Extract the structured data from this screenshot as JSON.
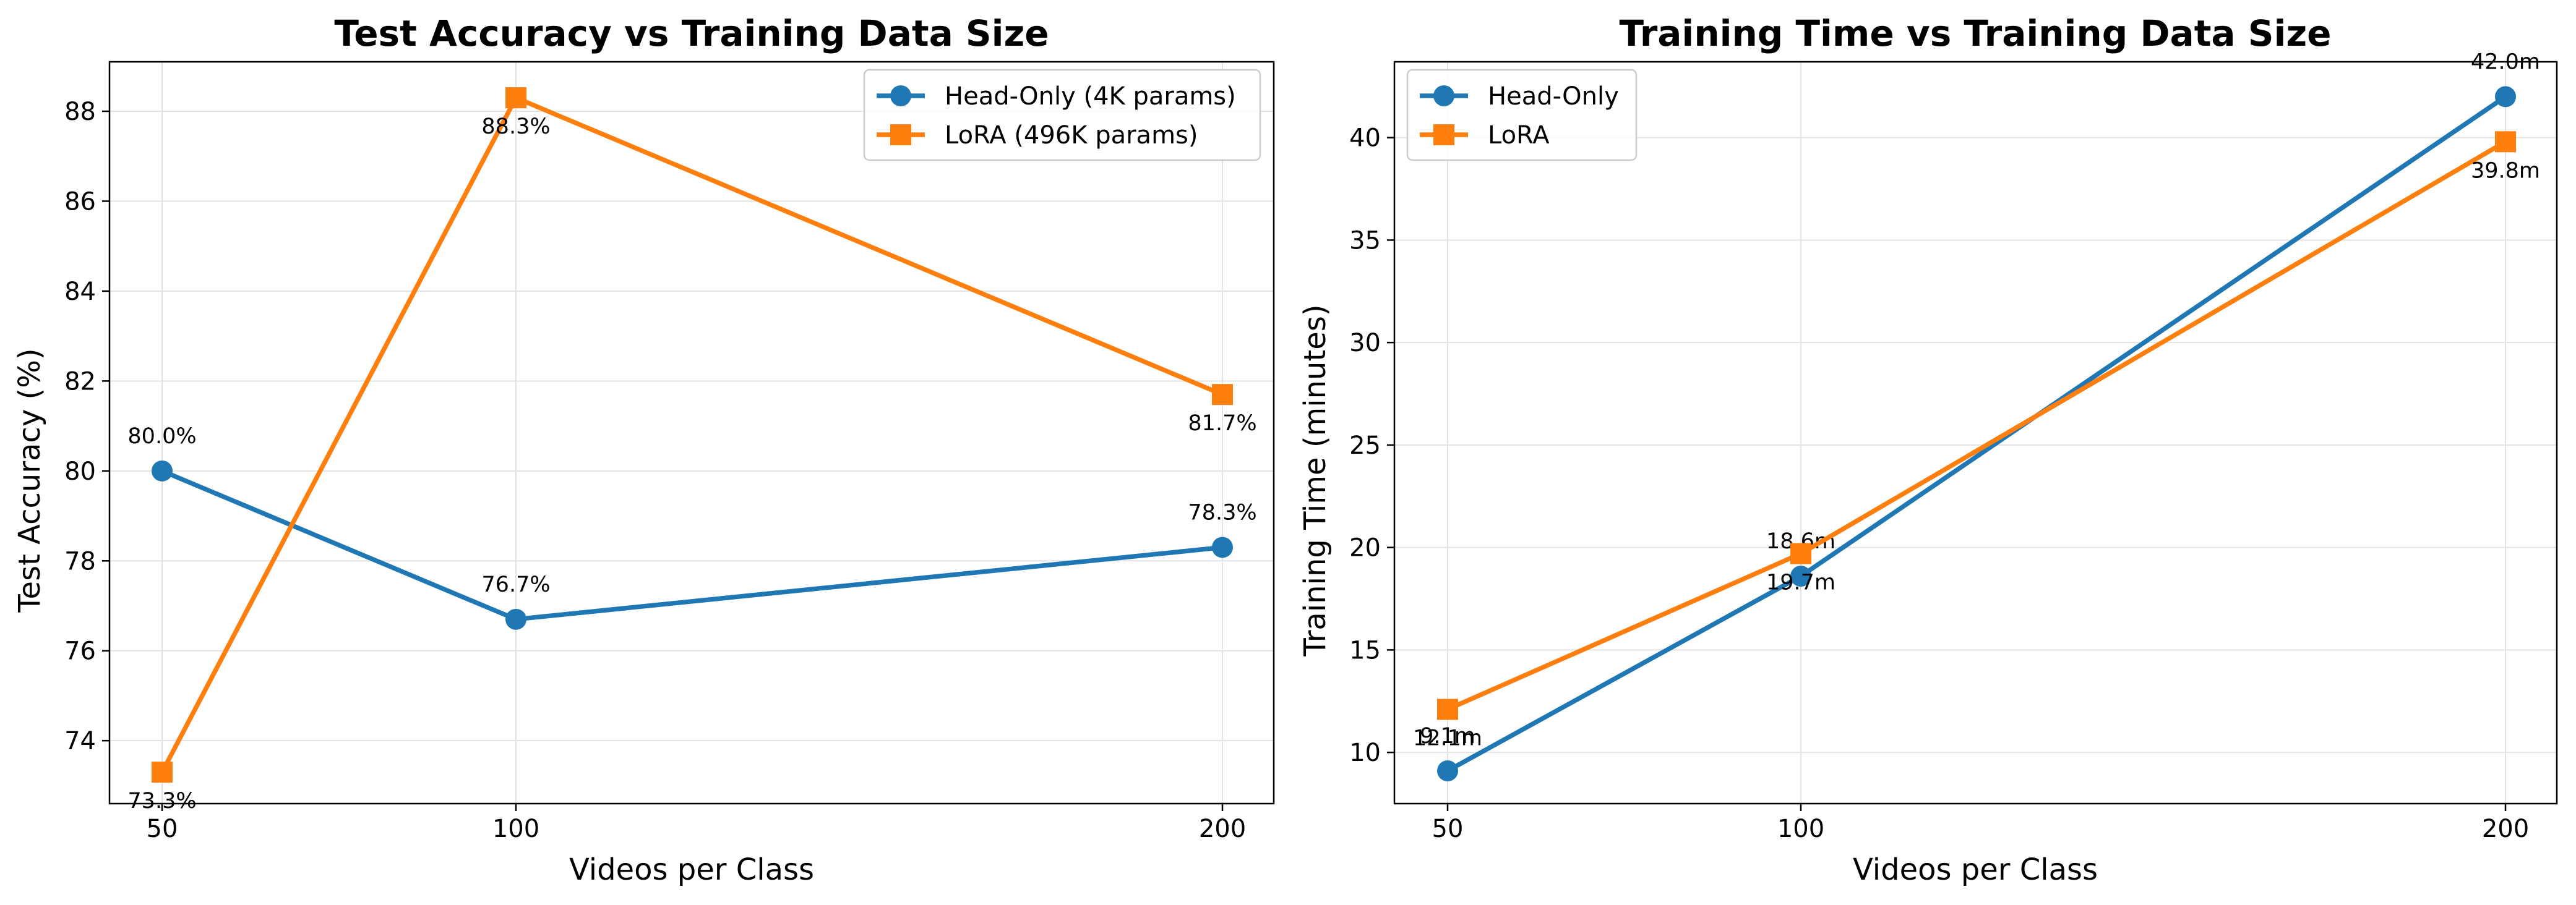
{
  "chart_data": [
    {
      "type": "line",
      "title": "Test Accuracy vs Training Data Size",
      "xlabel": "Videos per Class",
      "ylabel": "Test Accuracy (%)",
      "x": [
        50,
        100,
        200
      ],
      "xticks": [
        "50",
        "100",
        "200"
      ],
      "ylim": [
        72.6,
        89.1
      ],
      "yticks": [
        74,
        76,
        78,
        80,
        82,
        84,
        86,
        88
      ],
      "grid": true,
      "legend_position": "top-right",
      "series": [
        {
          "name": "Head-Only (4K params)",
          "color": "#1f77b4",
          "marker": "circle",
          "values": [
            80.0,
            76.7,
            78.3
          ],
          "labels": [
            "80.0%",
            "76.7%",
            "78.3%"
          ]
        },
        {
          "name": "LoRA (496K params)",
          "color": "#ff7f0e",
          "marker": "square",
          "values": [
            73.3,
            88.3,
            81.7
          ],
          "labels": [
            "73.3%",
            "88.3%",
            "81.7%"
          ]
        }
      ]
    },
    {
      "type": "line",
      "title": "Training Time vs Training Data Size",
      "xlabel": "Videos per Class",
      "ylabel": "Training Time (minutes)",
      "x": [
        50,
        100,
        200
      ],
      "xticks": [
        "50",
        "100",
        "200"
      ],
      "ylim": [
        7.5,
        43.7
      ],
      "yticks": [
        10,
        15,
        20,
        25,
        30,
        35,
        40
      ],
      "grid": true,
      "legend_position": "top-left",
      "series": [
        {
          "name": "Head-Only",
          "color": "#1f77b4",
          "marker": "circle",
          "values": [
            9.1,
            18.6,
            42.0
          ],
          "labels": [
            "9.1m",
            "18.6m",
            "42.0m"
          ]
        },
        {
          "name": "LoRA",
          "color": "#ff7f0e",
          "marker": "square",
          "values": [
            12.1,
            19.7,
            39.8
          ],
          "labels": [
            "12.1m",
            "19.7m",
            "39.8m"
          ]
        }
      ]
    }
  ]
}
